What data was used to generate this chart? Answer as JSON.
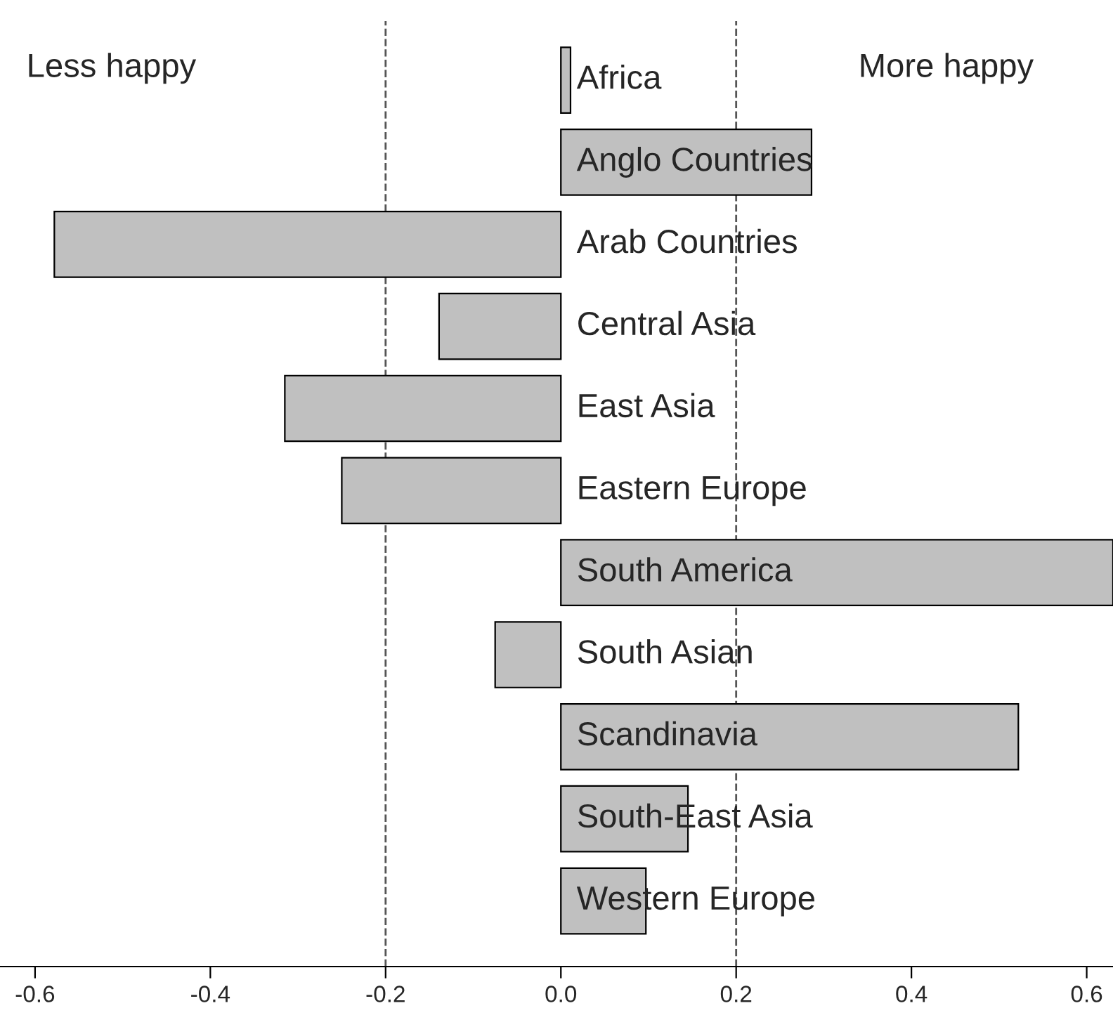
{
  "chart_data": {
    "type": "bar",
    "orientation": "horizontal",
    "categories": [
      "Africa",
      "Anglo Countries",
      "Arab Countries",
      "Central Asia",
      "East Asia",
      "Eastern Europe",
      "South America",
      "South Asian",
      "Scandinavia",
      "South-East Asia",
      "Western Europe"
    ],
    "values": [
      0.011,
      0.286,
      -0.578,
      -0.139,
      -0.315,
      -0.25,
      0.63,
      -0.075,
      0.522,
      0.145,
      0.097
    ],
    "color": "#c0c0c0",
    "xlim": [
      -0.64,
      0.63
    ],
    "xticks": [
      -0.6,
      -0.4,
      -0.2,
      {
        "value": 0.0,
        "label": "0.0"
      },
      0.2,
      0.4,
      0.6
    ],
    "ref_lines": [
      {
        "axis": "x",
        "value": -0.2,
        "line_style": "dashed",
        "color": "#555555"
      },
      {
        "axis": "x",
        "value": 0.2,
        "line_style": "dashed",
        "color": "#555555"
      }
    ],
    "annotations": [
      "Less happy",
      "More happy"
    ],
    "grid": false,
    "legend": false
  }
}
